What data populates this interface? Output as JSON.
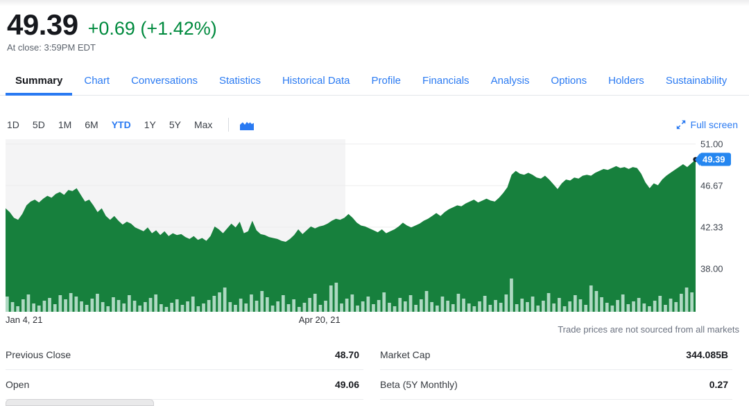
{
  "quote": {
    "price": "49.39",
    "change": "+0.69 (+1.42%)",
    "at_close": "At close: 3:59PM EDT"
  },
  "tabs": {
    "items": [
      {
        "label": "Summary",
        "active": true
      },
      {
        "label": "Chart"
      },
      {
        "label": "Conversations"
      },
      {
        "label": "Statistics"
      },
      {
        "label": "Historical Data"
      },
      {
        "label": "Profile"
      },
      {
        "label": "Financials"
      },
      {
        "label": "Analysis"
      },
      {
        "label": "Options"
      },
      {
        "label": "Holders"
      },
      {
        "label": "Sustainability"
      }
    ]
  },
  "toolbar": {
    "ranges": [
      {
        "label": "1D"
      },
      {
        "label": "5D"
      },
      {
        "label": "1M"
      },
      {
        "label": "6M"
      },
      {
        "label": "YTD",
        "active": true
      },
      {
        "label": "1Y"
      },
      {
        "label": "5Y"
      },
      {
        "label": "Max"
      }
    ],
    "chart_type_icon": "area-chart-icon",
    "full_screen_label": "Full screen"
  },
  "chart_data": {
    "type": "area",
    "title": "YTD price chart",
    "ylim": [
      33.5,
      51.5
    ],
    "grid": true,
    "legend": "none",
    "y_ticks": [
      {
        "label": "51.00",
        "value": 51.0
      },
      {
        "label": "46.67",
        "value": 46.67
      },
      {
        "label": "42.33",
        "value": 42.33
      },
      {
        "label": "38.00",
        "value": 38.0
      }
    ],
    "x_axis_labels": [
      {
        "label": "Jan 4, 21",
        "position": 0
      },
      {
        "label": "Apr 20, 21",
        "position": 0.455
      }
    ],
    "last_price": 49.39,
    "last_price_label": "49.39",
    "shaded_region": {
      "start": 0,
      "end": 0.4925
    },
    "series": [
      {
        "name": "price",
        "values": [
          44.3,
          43.9,
          43.3,
          43.1,
          43.7,
          44.6,
          45.0,
          45.2,
          44.9,
          45.3,
          45.6,
          45.4,
          45.8,
          46.0,
          45.7,
          46.2,
          46.1,
          46.4,
          45.7,
          45.0,
          45.2,
          44.6,
          43.9,
          44.3,
          43.5,
          43.1,
          43.5,
          43.0,
          42.6,
          42.9,
          42.7,
          42.3,
          42.1,
          41.9,
          42.3,
          41.7,
          42.0,
          41.5,
          41.9,
          41.4,
          41.7,
          41.5,
          41.6,
          41.3,
          41.1,
          41.4,
          41.0,
          41.2,
          40.9,
          41.4,
          42.4,
          42.1,
          41.7,
          42.2,
          42.7,
          42.3,
          42.9,
          41.7,
          41.9,
          43.0,
          42.0,
          41.6,
          41.5,
          41.3,
          41.2,
          41.1,
          40.9,
          40.8,
          41.1,
          41.5,
          42.1,
          41.6,
          42.0,
          42.4,
          42.2,
          42.4,
          42.5,
          42.7,
          43.0,
          43.2,
          43.1,
          43.3,
          43.7,
          43.3,
          42.8,
          42.5,
          42.4,
          42.2,
          42.0,
          41.8,
          42.1,
          41.7,
          41.9,
          42.1,
          42.4,
          42.8,
          42.5,
          42.3,
          42.5,
          42.7,
          43.0,
          43.2,
          43.5,
          43.8,
          43.5,
          43.9,
          44.2,
          44.4,
          44.6,
          44.5,
          44.8,
          45.0,
          45.2,
          44.9,
          45.1,
          45.3,
          45.1,
          45.0,
          45.4,
          45.9,
          46.5,
          47.8,
          48.2,
          47.9,
          47.8,
          48.0,
          47.8,
          47.5,
          47.4,
          47.7,
          47.3,
          46.8,
          46.3,
          46.9,
          47.3,
          47.2,
          47.5,
          47.4,
          47.7,
          47.8,
          47.7,
          48.0,
          48.2,
          48.4,
          48.3,
          48.5,
          48.7,
          48.5,
          48.6,
          48.4,
          48.6,
          48.5,
          47.9,
          47.0,
          46.4,
          46.9,
          46.7,
          47.3,
          47.7,
          48.0,
          48.3,
          48.6,
          48.9,
          48.6,
          49.0,
          49.39
        ]
      }
    ],
    "volume_bars": [
      22,
      14,
      8,
      18,
      25,
      12,
      9,
      16,
      20,
      11,
      24,
      18,
      27,
      22,
      15,
      10,
      19,
      26,
      14,
      8,
      21,
      17,
      12,
      24,
      16,
      9,
      14,
      20,
      25,
      11,
      7,
      13,
      18,
      10,
      15,
      22,
      8,
      12,
      17,
      23,
      28,
      35,
      14,
      10,
      19,
      12,
      25,
      16,
      30,
      21,
      9,
      15,
      24,
      11,
      18,
      7,
      13,
      20,
      26,
      10,
      16,
      38,
      42,
      12,
      19,
      25,
      9,
      15,
      22,
      11,
      17,
      28,
      13,
      8,
      20,
      15,
      24,
      10,
      18,
      30,
      14,
      9,
      22,
      16,
      11,
      26,
      19,
      12,
      8,
      15,
      23,
      10,
      17,
      13,
      25,
      48,
      11,
      19,
      14,
      22,
      9,
      16,
      27,
      12,
      20,
      8,
      15,
      24,
      18,
      10,
      38,
      30,
      21,
      13,
      9,
      17,
      25,
      11,
      15,
      20,
      12,
      8,
      16,
      23,
      10,
      19,
      14,
      26,
      35,
      28
    ],
    "colors": {
      "area": "#17803d",
      "volume": "#aed9c2",
      "shade": "#f4f4f5",
      "grid": "#ececee",
      "badge": "#2486f0",
      "marker": "#16181d",
      "accent_blue": "#2a7af2",
      "positive_green": "#008a3e"
    },
    "disclaimer": "Trade prices are not sourced from all markets"
  },
  "stats": {
    "left": [
      {
        "label": "Previous Close",
        "value": "48.70"
      },
      {
        "label": "Open",
        "value": "49.06"
      }
    ],
    "right": [
      {
        "label": "Market Cap",
        "value": "344.085B"
      },
      {
        "label": "Beta (5Y Monthly)",
        "value": "0.27"
      }
    ]
  }
}
